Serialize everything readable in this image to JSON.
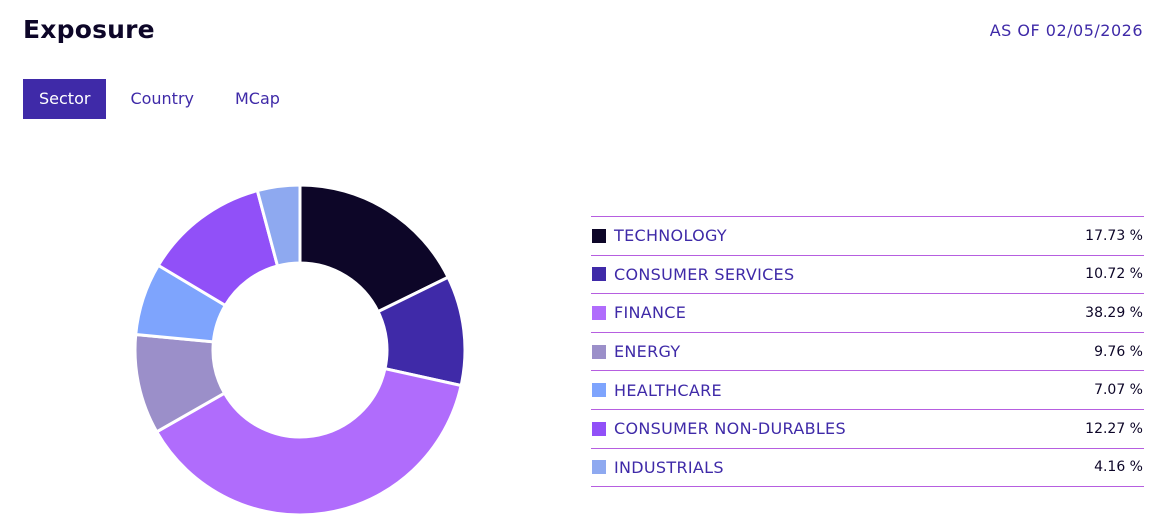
{
  "header": {
    "title": "Exposure",
    "as_of": "AS OF 02/05/2026"
  },
  "tabs": [
    {
      "label": "Sector",
      "active": true
    },
    {
      "label": "Country",
      "active": false
    },
    {
      "label": "MCap",
      "active": false
    }
  ],
  "legend": [
    {
      "label": "TECHNOLOGY",
      "value": "17.73 %",
      "color": "#0d0628"
    },
    {
      "label": "CONSUMER SERVICES",
      "value": "10.72 %",
      "color": "#3f2aa8"
    },
    {
      "label": "FINANCE",
      "value": "38.29 %",
      "color": "#b06cfc"
    },
    {
      "label": "ENERGY",
      "value": "9.76 %",
      "color": "#9b8fc9"
    },
    {
      "label": "HEALTHCARE",
      "value": "7.07 %",
      "color": "#7ea4fd"
    },
    {
      "label": "CONSUMER NON-DURABLES",
      "value": "12.27 %",
      "color": "#9150f8"
    },
    {
      "label": "INDUSTRIALS",
      "value": "4.16 %",
      "color": "#8ea9f0"
    }
  ],
  "chart_data": {
    "type": "pie",
    "donut": true,
    "categories": [
      "TECHNOLOGY",
      "CONSUMER SERVICES",
      "FINANCE",
      "ENERGY",
      "HEALTHCARE",
      "CONSUMER NON-DURABLES",
      "INDUSTRIALS"
    ],
    "values": [
      17.73,
      10.72,
      38.29,
      9.76,
      7.07,
      12.27,
      4.16
    ],
    "colors": [
      "#0d0628",
      "#3f2aa8",
      "#b06cfc",
      "#9b8fc9",
      "#7ea4fd",
      "#9150f8",
      "#8ea9f0"
    ],
    "legend_position": "right"
  }
}
